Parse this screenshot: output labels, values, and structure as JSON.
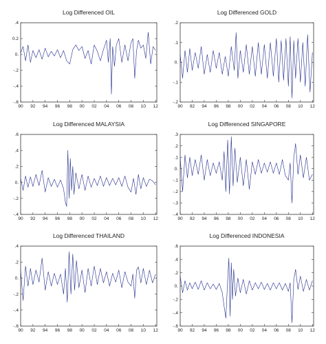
{
  "colors": {
    "series": "#1f2a8a",
    "frame": "#333333",
    "text": "#222222"
  },
  "chart_data": [
    {
      "type": "line",
      "title": "Log Differenced OIL",
      "x_tick_labels": [
        "90",
        "92",
        "94",
        "96",
        "98",
        "00",
        "02",
        "04",
        "06",
        "08",
        "10",
        "12"
      ],
      "x_range": [
        1990,
        2012.2
      ],
      "ylim": [
        -0.6,
        0.4
      ],
      "y_ticks": [
        -0.6,
        -0.4,
        -0.2,
        0.0,
        0.2,
        0.4
      ],
      "y_tick_labels": [
        "-.6",
        "-.4",
        "-.2",
        "0.",
        "0.2",
        ".4"
      ],
      "series": [
        {
          "x": [
            1990,
            1990.4,
            1990.8,
            1991.2,
            1991.6,
            1992,
            1992.5,
            1993,
            1993.5,
            1994,
            1994.5,
            1995,
            1995.5,
            1996,
            1996.5,
            1997,
            1997.5,
            1998,
            1998.5,
            1999,
            1999.5,
            2000,
            2000.5,
            2001,
            2001.5,
            2002,
            2002.5,
            2003,
            2003.5,
            2004,
            2004.3,
            2004.6,
            2004.8,
            2005,
            2005.3,
            2005.6,
            2006,
            2006.5,
            2007,
            2007.5,
            2008,
            2008.3,
            2008.6,
            2008.9,
            2009.2,
            2009.6,
            2010,
            2010.4,
            2010.8,
            2011.2,
            2011.6,
            2012
          ],
          "values": [
            0.02,
            0.1,
            -0.08,
            0.12,
            -0.1,
            0.05,
            -0.04,
            0.06,
            -0.06,
            0.08,
            -0.03,
            0.04,
            -0.02,
            0.06,
            -0.04,
            0.05,
            -0.08,
            -0.12,
            0.06,
            0.12,
            0.05,
            0.1,
            -0.05,
            0.05,
            -0.12,
            0.12,
            0.04,
            -0.08,
            0.06,
            0.18,
            -0.1,
            0.2,
            -0.5,
            0.1,
            -0.15,
            0.12,
            0.2,
            -0.1,
            0.12,
            -0.08,
            0.15,
            0.2,
            -0.3,
            0.05,
            0.18,
            0.08,
            0.12,
            -0.05,
            0.28,
            -0.12,
            0.1,
            0.05
          ]
        }
      ]
    },
    {
      "type": "line",
      "title": "Log Differenced GOLD",
      "x_tick_labels": [
        "90",
        "92",
        "94",
        "96",
        "98",
        "00",
        "02",
        "04",
        "06",
        "08",
        "10",
        "12"
      ],
      "x_range": [
        1990,
        2012.2
      ],
      "ylim": [
        -0.2,
        0.2
      ],
      "y_ticks": [
        -0.2,
        -0.1,
        0.0,
        0.1,
        0.2
      ],
      "y_tick_labels": [
        "-.2",
        "-.1",
        "0.",
        ".1",
        ".2"
      ],
      "series": [
        {
          "x": [
            1990,
            1990.4,
            1990.8,
            1991.2,
            1991.6,
            1992,
            1992.5,
            1993,
            1993.5,
            1994,
            1994.5,
            1995,
            1995.5,
            1996,
            1996.5,
            1997,
            1997.5,
            1998,
            1998.5,
            1999,
            1999.3,
            1999.6,
            2000,
            2000.5,
            2001,
            2001.5,
            2002,
            2002.5,
            2003,
            2003.5,
            2004,
            2004.5,
            2005,
            2005.5,
            2006,
            2006.4,
            2006.8,
            2007.2,
            2007.6,
            2008,
            2008.3,
            2008.6,
            2008.9,
            2009.2,
            2009.6,
            2010,
            2010.4,
            2010.8,
            2011.2,
            2011.6,
            2012
          ],
          "values": [
            0.04,
            -0.08,
            0.06,
            -0.05,
            0.07,
            -0.04,
            0.05,
            -0.03,
            0.08,
            -0.06,
            0.04,
            -0.05,
            0.06,
            -0.03,
            0.05,
            -0.06,
            0.03,
            -0.07,
            0.08,
            -0.04,
            0.15,
            -0.08,
            0.06,
            -0.05,
            0.09,
            -0.06,
            0.08,
            -0.07,
            0.1,
            -0.06,
            0.09,
            -0.08,
            0.1,
            -0.07,
            0.12,
            -0.1,
            0.11,
            -0.09,
            0.12,
            -0.12,
            0.13,
            -0.18,
            0.11,
            -0.08,
            0.12,
            -0.1,
            0.1,
            -0.12,
            0.14,
            -0.15,
            0.05
          ]
        }
      ]
    },
    {
      "type": "line",
      "title": "Log Differenced MALAYSIA",
      "x_tick_labels": [
        "90",
        "92",
        "94",
        "96",
        "98",
        "00",
        "02",
        "04",
        "06",
        "08",
        "10",
        "12"
      ],
      "x_range": [
        1990,
        2012.2
      ],
      "ylim": [
        -0.4,
        0.6
      ],
      "y_ticks": [
        -0.4,
        -0.2,
        0.0,
        0.2,
        0.4,
        0.6
      ],
      "y_tick_labels": [
        "-.4",
        "-.2",
        "0.",
        ".2",
        ".4",
        ".6"
      ],
      "series": [
        {
          "x": [
            1990,
            1990.4,
            1990.8,
            1991.2,
            1991.6,
            1992,
            1992.5,
            1993,
            1993.5,
            1994,
            1994.5,
            1995,
            1995.5,
            1996,
            1996.5,
            1997,
            1997.3,
            1997.5,
            1997.7,
            1997.9,
            1998.1,
            1998.3,
            1998.5,
            1998.7,
            1999,
            1999.5,
            2000,
            2000.5,
            2001,
            2001.5,
            2002,
            2002.5,
            2003,
            2003.5,
            2004,
            2004.5,
            2005,
            2005.5,
            2006,
            2006.5,
            2007,
            2007.5,
            2008,
            2008.4,
            2008.8,
            2009.2,
            2009.6,
            2010,
            2010.5,
            2011,
            2011.5,
            2012
          ],
          "values": [
            0.05,
            -0.1,
            0.08,
            -0.06,
            0.07,
            -0.05,
            0.1,
            -0.04,
            0.15,
            -0.12,
            0.06,
            -0.05,
            0.04,
            -0.06,
            0.03,
            -0.08,
            -0.25,
            -0.3,
            0.4,
            -0.2,
            0.3,
            -0.1,
            0.2,
            -0.15,
            0.12,
            -0.08,
            0.1,
            -0.1,
            0.08,
            -0.06,
            0.05,
            -0.04,
            0.08,
            -0.05,
            0.06,
            -0.04,
            0.05,
            -0.03,
            0.06,
            -0.05,
            0.08,
            -0.06,
            -0.12,
            0.05,
            -0.15,
            0.1,
            -0.08,
            0.06,
            -0.05,
            0.04,
            0.02,
            -0.03
          ]
        }
      ]
    },
    {
      "type": "line",
      "title": "Log Differenced SINGAPORE",
      "x_tick_labels": [
        "90",
        "92",
        "94",
        "96",
        "98",
        "00",
        "02",
        "04",
        "06",
        "08",
        "10",
        "12"
      ],
      "x_range": [
        1990,
        2012.2
      ],
      "ylim": [
        -0.4,
        0.3
      ],
      "y_ticks": [
        -0.4,
        -0.3,
        -0.2,
        -0.1,
        0.0,
        0.1,
        0.2,
        0.3
      ],
      "y_tick_labels": [
        "-.4",
        "-.3",
        "-.2",
        "-.1",
        "0.",
        ".1",
        ".2",
        ".3"
      ],
      "series": [
        {
          "x": [
            1990,
            1990.4,
            1990.8,
            1991.2,
            1991.6,
            1992,
            1992.5,
            1993,
            1993.5,
            1994,
            1994.5,
            1995,
            1995.5,
            1996,
            1996.5,
            1997,
            1997.3,
            1997.6,
            1997.9,
            1998.2,
            1998.5,
            1998.8,
            1999.1,
            1999.5,
            2000,
            2000.5,
            2001,
            2001.5,
            2002,
            2002.5,
            2003,
            2003.5,
            2004,
            2004.5,
            2005,
            2005.5,
            2006,
            2006.5,
            2007,
            2007.5,
            2008,
            2008.3,
            2008.6,
            2008.9,
            2009.2,
            2009.6,
            2010,
            2010.5,
            2011,
            2011.5,
            2012
          ],
          "values": [
            0.1,
            -0.2,
            0.12,
            -0.08,
            0.1,
            -0.06,
            0.08,
            -0.05,
            0.12,
            -0.1,
            0.08,
            -0.06,
            0.05,
            -0.04,
            0.06,
            -0.1,
            0.15,
            -0.2,
            0.25,
            -0.22,
            0.28,
            -0.15,
            0.18,
            -0.12,
            0.1,
            -0.15,
            0.08,
            -0.18,
            0.06,
            -0.05,
            0.08,
            -0.04,
            0.05,
            -0.03,
            0.06,
            -0.04,
            0.05,
            -0.05,
            0.08,
            -0.06,
            -0.1,
            0.05,
            -0.3,
            0.1,
            0.22,
            -0.05,
            0.12,
            -0.08,
            0.1,
            -0.1,
            -0.05
          ]
        }
      ]
    },
    {
      "type": "line",
      "title": "Log Differenced THAILAND",
      "x_tick_labels": [
        "90",
        "92",
        "94",
        "96",
        "98",
        "00",
        "02",
        "04",
        "06",
        "08",
        "10",
        "12"
      ],
      "x_range": [
        1990,
        2012.2
      ],
      "ylim": [
        -0.6,
        0.4
      ],
      "y_ticks": [
        -0.6,
        -0.4,
        -0.2,
        0.0,
        0.2,
        0.4
      ],
      "y_tick_labels": [
        "-.6",
        "-.4",
        "-.2",
        "0.",
        ".2",
        ".4"
      ],
      "series": [
        {
          "x": [
            1990,
            1990.4,
            1990.8,
            1991.2,
            1991.6,
            1992,
            1992.5,
            1993,
            1993.5,
            1994,
            1994.5,
            1995,
            1995.5,
            1996,
            1996.5,
            1997,
            1997.3,
            1997.6,
            1997.9,
            1998.2,
            1998.5,
            1998.8,
            1999.1,
            1999.5,
            2000,
            2000.5,
            2001,
            2001.5,
            2002,
            2002.5,
            2003,
            2003.5,
            2004,
            2004.5,
            2005,
            2005.5,
            2006,
            2006.5,
            2007,
            2007.5,
            2008,
            2008.3,
            2008.6,
            2008.9,
            2009.2,
            2009.6,
            2010,
            2010.5,
            2011,
            2011.5,
            2012
          ],
          "values": [
            0.1,
            -0.28,
            0.15,
            -0.1,
            0.12,
            -0.08,
            0.1,
            -0.05,
            0.25,
            -0.15,
            0.08,
            -0.1,
            0.06,
            -0.08,
            0.05,
            -0.2,
            0.12,
            -0.3,
            0.33,
            -0.2,
            0.3,
            -0.15,
            0.22,
            -0.12,
            0.1,
            -0.18,
            0.12,
            -0.1,
            0.15,
            -0.08,
            0.12,
            -0.06,
            0.08,
            -0.1,
            0.06,
            -0.05,
            0.1,
            -0.12,
            0.08,
            -0.05,
            -0.1,
            0.05,
            -0.25,
            0.1,
            0.14,
            -0.06,
            0.12,
            -0.08,
            0.1,
            -0.06,
            0.05
          ]
        }
      ]
    },
    {
      "type": "line",
      "title": "Log Differenced INDONESIA",
      "x_tick_labels": [
        "90",
        "92",
        "94",
        "96",
        "98",
        "00",
        "02",
        "04",
        "06",
        "08",
        "10",
        "12"
      ],
      "x_range": [
        1990,
        2012.2
      ],
      "ylim": [
        -0.6,
        0.6
      ],
      "y_ticks": [
        -0.6,
        -0.4,
        -0.2,
        0.0,
        0.2,
        0.4,
        0.6
      ],
      "y_tick_labels": [
        "-.6",
        "-.4",
        "-.2",
        "0.",
        ".2",
        ".4",
        ".6"
      ],
      "series": [
        {
          "x": [
            1990,
            1990.4,
            1990.8,
            1991.2,
            1991.6,
            1992,
            1992.5,
            1993,
            1993.5,
            1994,
            1994.5,
            1995,
            1995.5,
            1996,
            1996.5,
            1997,
            1997.3,
            1997.6,
            1997.9,
            1998.1,
            1998.3,
            1998.5,
            1998.7,
            1998.9,
            1999.2,
            1999.6,
            2000,
            2000.5,
            2001,
            2001.5,
            2002,
            2002.5,
            2003,
            2003.5,
            2004,
            2004.5,
            2005,
            2005.5,
            2006,
            2006.5,
            2007,
            2007.5,
            2008,
            2008.3,
            2008.6,
            2008.9,
            2009.2,
            2009.6,
            2010,
            2010.5,
            2011,
            2011.5,
            2012
          ],
          "values": [
            0.15,
            -0.1,
            0.08,
            -0.06,
            0.05,
            -0.04,
            0.06,
            -0.05,
            0.08,
            -0.06,
            0.05,
            -0.04,
            0.03,
            -0.05,
            0.04,
            -0.1,
            -0.3,
            -0.48,
            0.1,
            0.42,
            -0.45,
            0.35,
            -0.2,
            0.25,
            -0.15,
            0.12,
            -0.1,
            0.1,
            -0.12,
            0.08,
            -0.06,
            0.05,
            -0.04,
            0.06,
            -0.05,
            0.04,
            -0.06,
            0.05,
            -0.04,
            0.05,
            -0.06,
            0.04,
            -0.08,
            0.05,
            -0.55,
            0.1,
            0.25,
            -0.05,
            0.15,
            -0.08,
            0.1,
            -0.06,
            0.08
          ]
        }
      ]
    }
  ]
}
